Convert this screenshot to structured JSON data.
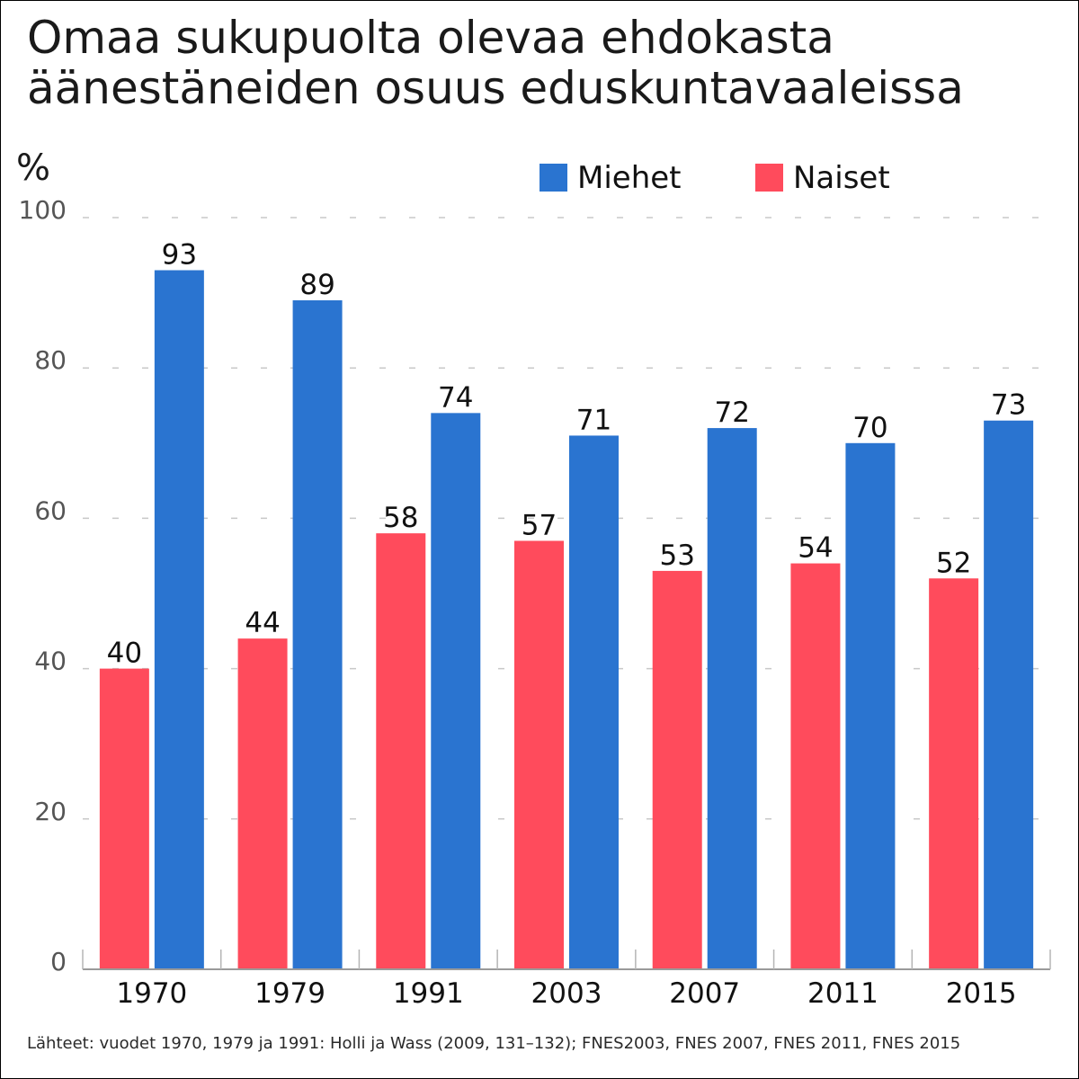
{
  "chart_data": {
    "type": "bar",
    "title_lines": [
      "Omaa sukupuolta olevaa ehdokasta",
      "äänestäneiden osuus eduskuntavaaleissa"
    ],
    "ylabel": "%",
    "ylim": [
      0,
      100
    ],
    "yticks": [
      0,
      20,
      40,
      60,
      80,
      100
    ],
    "grid": true,
    "legend_position": "top-right",
    "categories": [
      "1970",
      "1979",
      "1991",
      "2003",
      "2007",
      "2011",
      "2015"
    ],
    "series": [
      {
        "name": "Naiset",
        "color": "#ff4b5c",
        "values": [
          40,
          44,
          58,
          57,
          53,
          54,
          52
        ]
      },
      {
        "name": "Miehet",
        "color": "#2a74d0",
        "values": [
          93,
          89,
          74,
          71,
          72,
          70,
          73
        ]
      }
    ],
    "legend_order": [
      "Miehet",
      "Naiset"
    ],
    "source": "Lähteet: vuodet 1970, 1979 ja 1991: Holli ja Wass (2009, 131–132); FNES2003, FNES 2007, FNES 2011, FNES 2015"
  }
}
